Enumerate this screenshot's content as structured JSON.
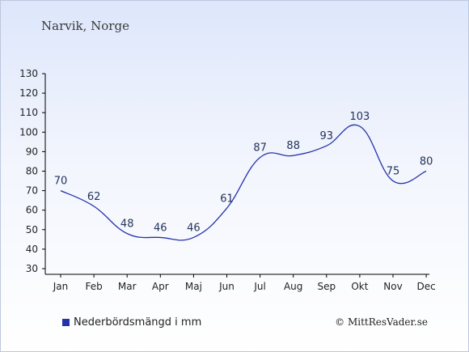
{
  "chart_data": {
    "type": "line",
    "title": "Narvik, Norge",
    "categories": [
      "Jan",
      "Feb",
      "Mar",
      "Apr",
      "Maj",
      "Jun",
      "Jul",
      "Aug",
      "Sep",
      "Okt",
      "Nov",
      "Dec"
    ],
    "series": [
      {
        "name": "Nederbördsmängd i mm",
        "values": [
          70,
          62,
          48,
          46,
          46,
          61,
          87,
          88,
          93,
          103,
          75,
          80
        ],
        "color": "#2433a8"
      }
    ],
    "y_ticks": [
      30,
      40,
      50,
      60,
      70,
      80,
      90,
      100,
      110,
      120,
      130
    ],
    "ylim": [
      30,
      130
    ],
    "legend_position": "bottom-left",
    "grid": false
  },
  "credit": "© MittResVader.se"
}
